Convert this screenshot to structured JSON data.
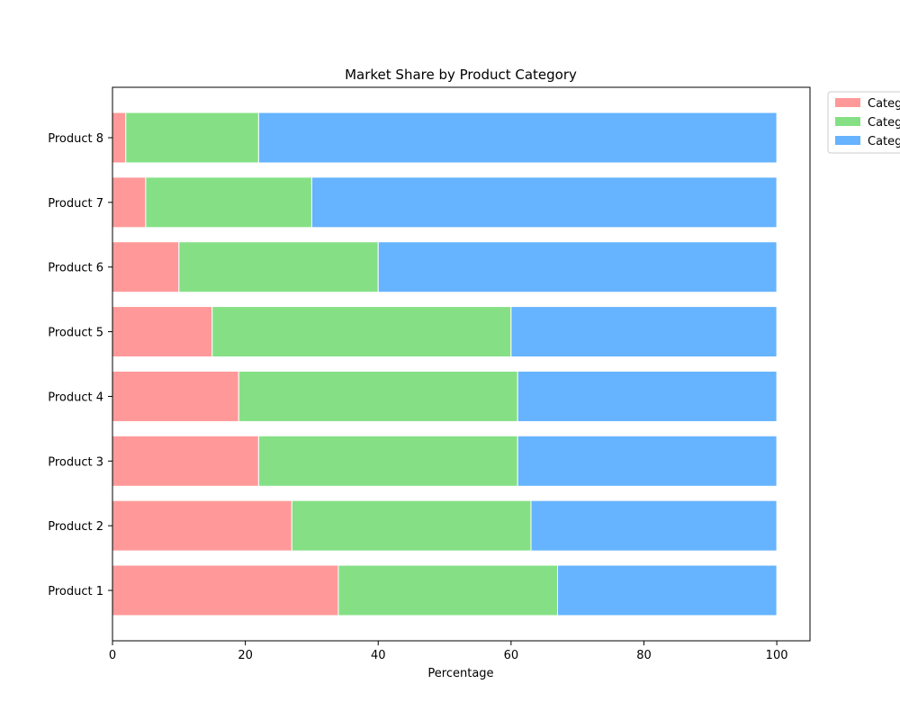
{
  "chart_data": {
    "type": "bar",
    "orientation": "horizontal",
    "stacked": true,
    "title": "Market Share by Product Category",
    "xlabel": "Percentage",
    "ylabel": "",
    "xlim": [
      0,
      105
    ],
    "x_ticks": [
      0,
      20,
      40,
      60,
      80,
      100
    ],
    "categories": [
      "Product 1",
      "Product 2",
      "Product 3",
      "Product 4",
      "Product 5",
      "Product 6",
      "Product 7",
      "Product 8"
    ],
    "series": [
      {
        "name": "Categ",
        "color": "#ff9999",
        "values": [
          34,
          27,
          22,
          19,
          15,
          10,
          5,
          2
        ]
      },
      {
        "name": "Categ",
        "color": "#85e085",
        "values": [
          33,
          36,
          39,
          42,
          45,
          30,
          25,
          20
        ]
      },
      {
        "name": "Categ",
        "color": "#66b3ff",
        "values": [
          33,
          37,
          39,
          39,
          40,
          60,
          70,
          78
        ]
      }
    ],
    "grid": false,
    "legend_position": "upper-right-outside"
  }
}
